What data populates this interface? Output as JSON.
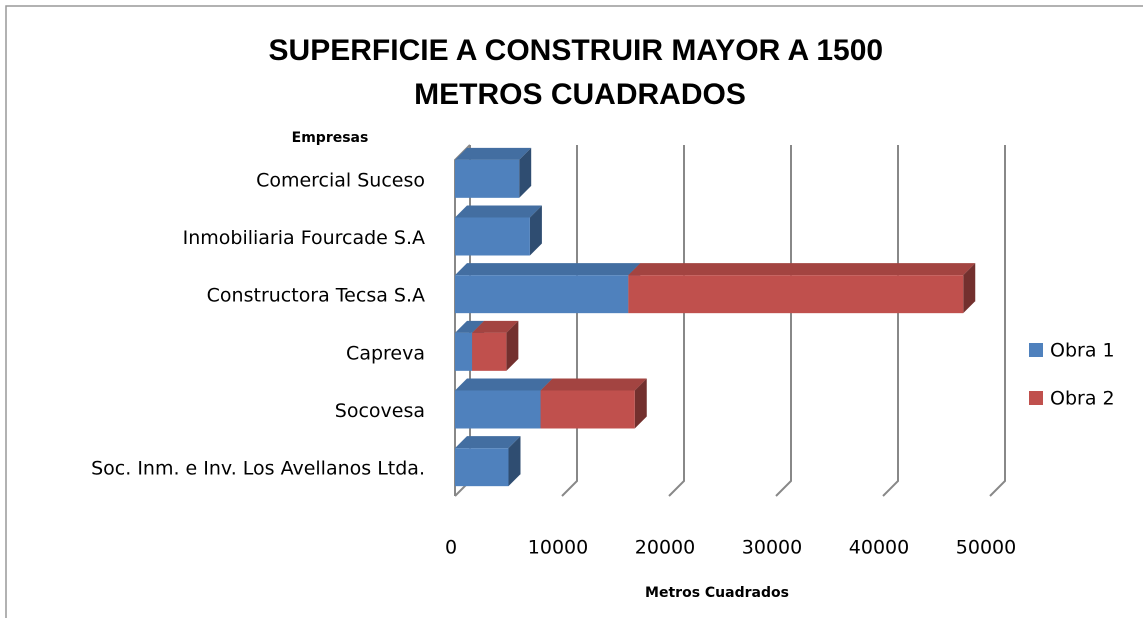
{
  "chart_data": {
    "type": "bar3d_stacked_horizontal",
    "title": "SUPERFICIE A CONSTRUIR MAYOR A 1500 METROS CUADRADOS",
    "y_label": "Empresas",
    "x_label": "Metros Cuadrados",
    "categories": [
      "Comercial Suceso",
      "Inmobiliaria Fourcade S.A",
      "Constructora Tecsa S.A",
      "Capreva",
      "Socovesa",
      "Soc. Inm. e Inv. Los Avellanos Ltda."
    ],
    "series": [
      {
        "name": "Obra 1",
        "color": "#4f81bd",
        "values": [
          6000,
          7000,
          16200,
          1600,
          8000,
          5000
        ]
      },
      {
        "name": "Obra 2",
        "color": "#c0504d",
        "values": [
          null,
          null,
          31300,
          3200,
          8800,
          null
        ]
      }
    ],
    "xlim": [
      0,
      50000
    ],
    "xticks": [
      0,
      10000,
      20000,
      30000,
      40000,
      50000
    ],
    "grid": true,
    "legend": "right"
  }
}
